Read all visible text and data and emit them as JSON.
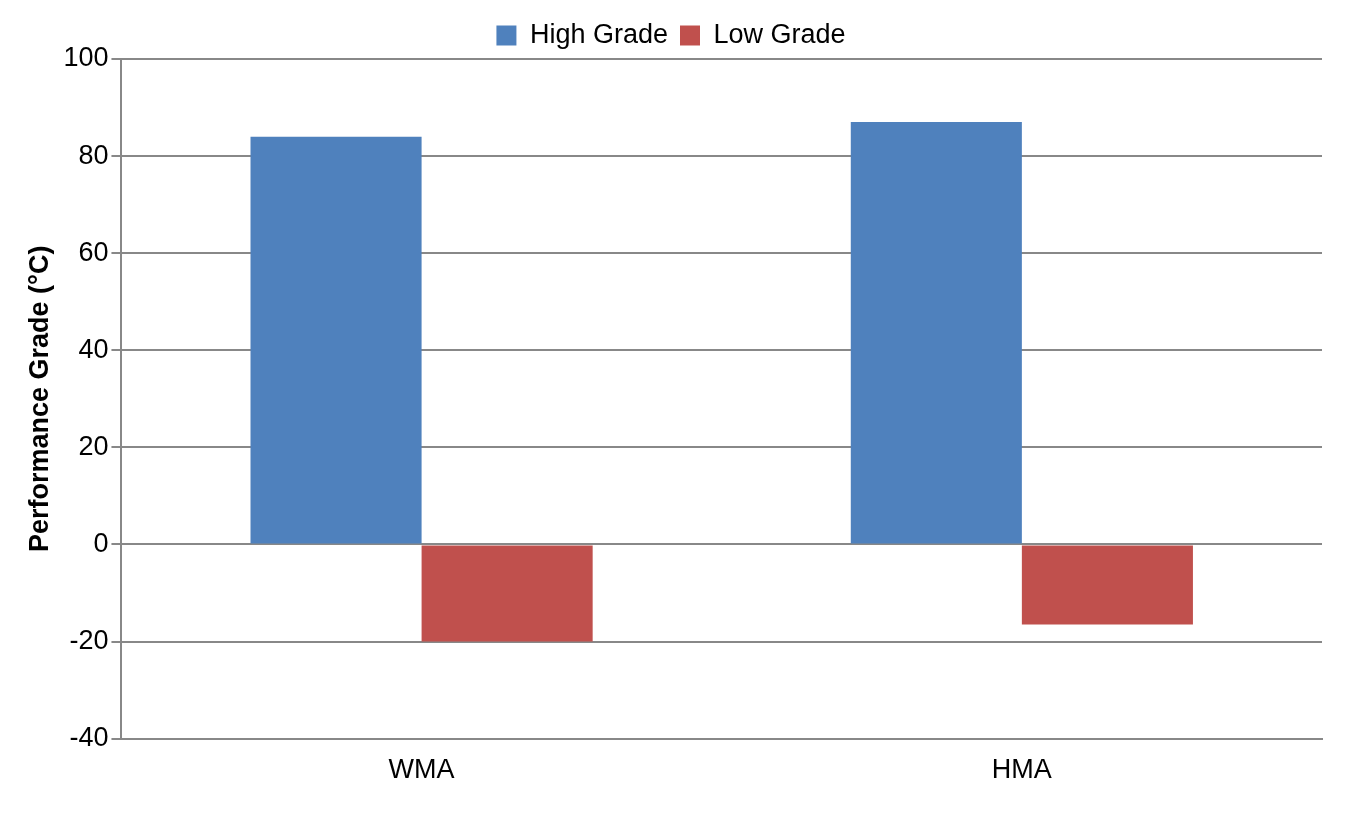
{
  "chart_data": {
    "type": "bar",
    "ylabel": "Performance Grade (°C)",
    "categories": [
      "WMA",
      "HMA"
    ],
    "series": [
      {
        "name": "High Grade",
        "color": "#4f81bd",
        "values": [
          84,
          87
        ]
      },
      {
        "name": "Low Grade",
        "color": "#c0504d",
        "values": [
          -20,
          -16.5
        ]
      }
    ],
    "ylim": [
      -40,
      100
    ],
    "yticks": [
      -40,
      -20,
      0,
      20,
      40,
      60,
      80,
      100
    ],
    "grid": "y",
    "legend": "top"
  }
}
